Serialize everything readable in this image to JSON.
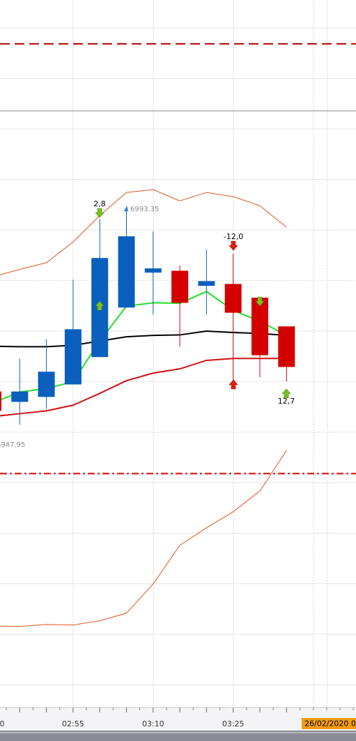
{
  "chart_data": {
    "type": "candlestick",
    "categories": [
      "0",
      null,
      null,
      "02:55",
      null,
      null,
      "03:10",
      null,
      null,
      "03:25",
      null,
      null
    ],
    "date_label": "26/02/2020 0",
    "ylim": [
      6888,
      7038
    ],
    "up_color": "#0a5fbd",
    "down_color": "#d40000",
    "open": [
      6955.0,
      6952.8,
      6953.85,
      6956.5,
      6962.3,
      6972.8,
      6980.2,
      6980.6,
      6977.4,
      6977.8,
      6974.9,
      6968.8
    ],
    "high": [
      6956.0,
      6962.0,
      6966.1,
      6978.7,
      6991.6,
      6993.35,
      6988.9,
      6981.7,
      6985.1,
      6984.2,
      6974.9,
      6968.8
    ],
    "low": [
      6950.0,
      6947.95,
      6951.3,
      6956.5,
      6962.3,
      6972.8,
      6971.3,
      6964.5,
      6971.3,
      6955.6,
      6958.0,
      6957.1
    ],
    "close": [
      6950.9,
      6955.0,
      6959.2,
      6968.2,
      6983.3,
      6987.9,
      6981.1,
      6973.8,
      6978.4,
      6971.7,
      6962.7,
      6960.2
    ],
    "lines": [
      {
        "color": "#e0541c",
        "width": 1,
        "values": [
          6979.3,
          6980.9,
          6982.3,
          6986.7,
          6992.3,
          6997.2,
          6997.8,
          6995.4,
          6997.2,
          6996.3,
          6994.4,
          6989.8
        ]
      },
      {
        "color": "#e0541c",
        "width": 1,
        "values": [
          6905.3,
          6905.2,
          6905.6,
          6905.5,
          6906.4,
          6908.0,
          6914.2,
          6922.4,
          6926.1,
          6929.5,
          6933.9,
          6942.5
        ]
      },
      {
        "color": "#d01010",
        "width": 2,
        "values": [
          6949.7,
          6950.3,
          6950.9,
          6952.1,
          6954.6,
          6957.3,
          6958.9,
          6959.8,
          6961.6,
          6962.0,
          6962.0,
          6962.0
        ]
      },
      {
        "color": "#000000",
        "width": 2,
        "values": [
          6964.6,
          6964.5,
          6964.5,
          6964.8,
          6965.7,
          6966.6,
          6966.9,
          6967.0,
          6967.8,
          6967.5,
          6967.3,
          6966.9
        ]
      },
      {
        "color": "#22e022",
        "width": 2,
        "values": [
          6952.6,
          6954.9,
          6955.6,
          6957.1,
          6965.7,
          6973.1,
          6973.8,
          6973.7,
          6976.2,
          6972.2,
          6969.9,
          6966.9
        ]
      }
    ],
    "levels": [
      {
        "value": 7028.7,
        "color": "#b00000",
        "style": "dashed"
      },
      {
        "value": 7014.5,
        "color": "#8a8a8a",
        "style": "solid"
      },
      {
        "value": 6937.6,
        "color": "#e00000",
        "style": "dashdot"
      }
    ],
    "annotations": [
      "2,8",
      "6993.35",
      "-12,0",
      "12,7",
      "6947.95"
    ]
  }
}
